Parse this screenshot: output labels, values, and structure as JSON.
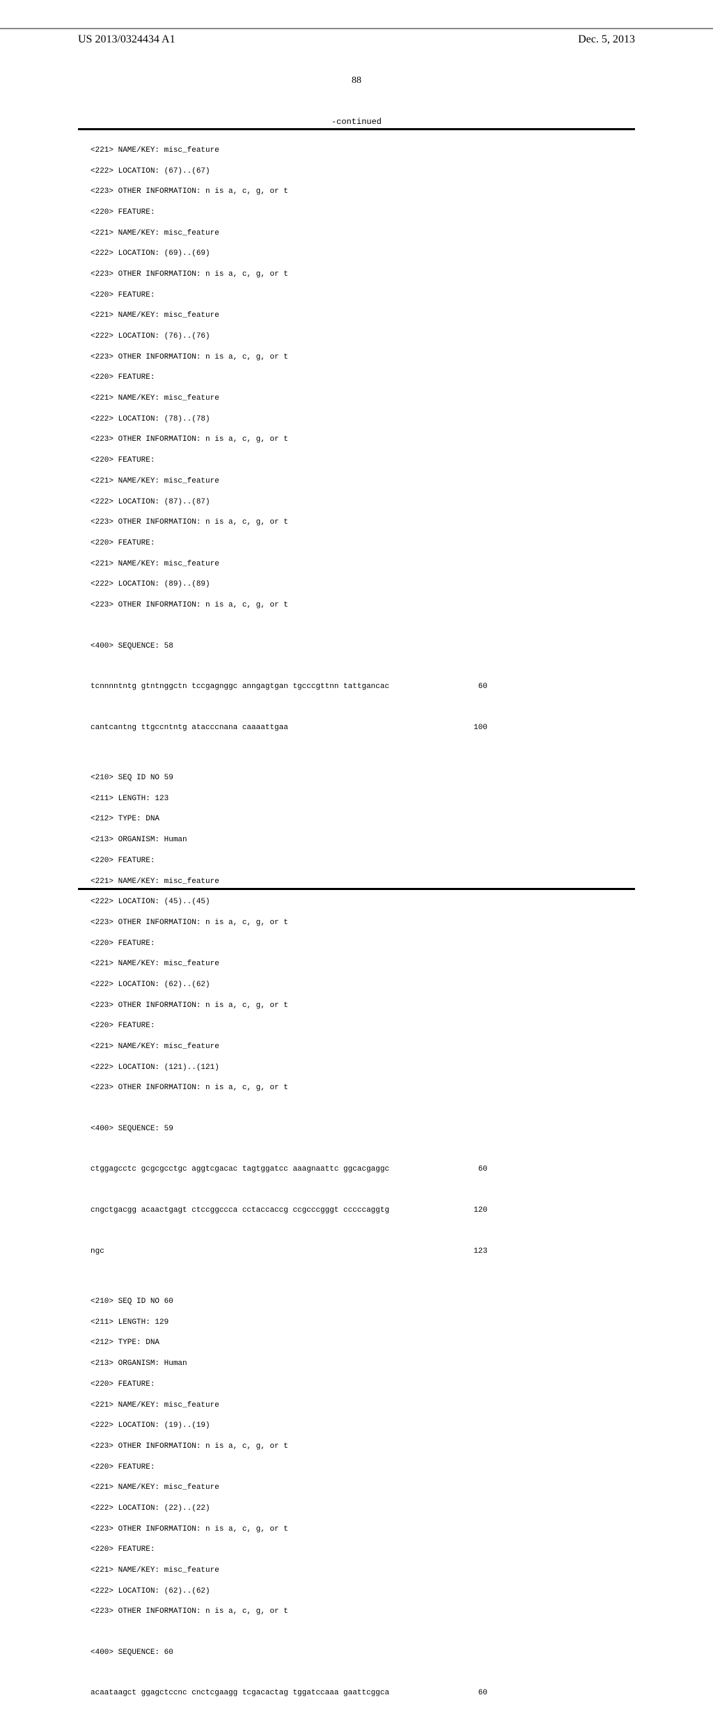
{
  "header": {
    "publication_number": "US 2013/0324434 A1",
    "publication_date": "Dec. 5, 2013"
  },
  "page_number": "88",
  "continued_label": "-continued",
  "block58": {
    "lines": [
      "<221> NAME/KEY: misc_feature",
      "<222> LOCATION: (67)..(67)",
      "<223> OTHER INFORMATION: n is a, c, g, or t",
      "<220> FEATURE:",
      "<221> NAME/KEY: misc_feature",
      "<222> LOCATION: (69)..(69)",
      "<223> OTHER INFORMATION: n is a, c, g, or t",
      "<220> FEATURE:",
      "<221> NAME/KEY: misc_feature",
      "<222> LOCATION: (76)..(76)",
      "<223> OTHER INFORMATION: n is a, c, g, or t",
      "<220> FEATURE:",
      "<221> NAME/KEY: misc_feature",
      "<222> LOCATION: (78)..(78)",
      "<223> OTHER INFORMATION: n is a, c, g, or t",
      "<220> FEATURE:",
      "<221> NAME/KEY: misc_feature",
      "<222> LOCATION: (87)..(87)",
      "<223> OTHER INFORMATION: n is a, c, g, or t",
      "<220> FEATURE:",
      "<221> NAME/KEY: misc_feature",
      "<222> LOCATION: (89)..(89)",
      "<223> OTHER INFORMATION: n is a, c, g, or t"
    ],
    "seq_label": "<400> SEQUENCE: 58",
    "seq1": {
      "text": "tcnnnntntg gtntnggctn tccgagnggc anngagtgan tgcccgttnn tattgancac",
      "num": "60"
    },
    "seq2": {
      "text": "cantcantng ttgccntntg atacccnana caaaattgaa",
      "num": "100"
    }
  },
  "block59": {
    "lines": [
      "<210> SEQ ID NO 59",
      "<211> LENGTH: 123",
      "<212> TYPE: DNA",
      "<213> ORGANISM: Human",
      "<220> FEATURE:",
      "<221> NAME/KEY: misc_feature",
      "<222> LOCATION: (45)..(45)",
      "<223> OTHER INFORMATION: n is a, c, g, or t",
      "<220> FEATURE:",
      "<221> NAME/KEY: misc_feature",
      "<222> LOCATION: (62)..(62)",
      "<223> OTHER INFORMATION: n is a, c, g, or t",
      "<220> FEATURE:",
      "<221> NAME/KEY: misc_feature",
      "<222> LOCATION: (121)..(121)",
      "<223> OTHER INFORMATION: n is a, c, g, or t"
    ],
    "seq_label": "<400> SEQUENCE: 59",
    "seq1": {
      "text": "ctggagcctc gcgcgcctgc aggtcgacac tagtggatcc aaagnaattc ggcacgaggc",
      "num": "60"
    },
    "seq2": {
      "text": "cngctgacgg acaactgagt ctccggccca cctaccaccg ccgcccgggt cccccaggtg",
      "num": "120"
    },
    "seq3": {
      "text": "ngc",
      "num": "123"
    }
  },
  "block60": {
    "lines": [
      "<210> SEQ ID NO 60",
      "<211> LENGTH: 129",
      "<212> TYPE: DNA",
      "<213> ORGANISM: Human",
      "<220> FEATURE:",
      "<221> NAME/KEY: misc_feature",
      "<222> LOCATION: (19)..(19)",
      "<223> OTHER INFORMATION: n is a, c, g, or t",
      "<220> FEATURE:",
      "<221> NAME/KEY: misc_feature",
      "<222> LOCATION: (22)..(22)",
      "<223> OTHER INFORMATION: n is a, c, g, or t",
      "<220> FEATURE:",
      "<221> NAME/KEY: misc_feature",
      "<222> LOCATION: (62)..(62)",
      "<223> OTHER INFORMATION: n is a, c, g, or t"
    ],
    "seq_label": "<400> SEQUENCE: 60",
    "seq1": {
      "text": "acaataagct ggagctccnc cnctcgaagg tcgacactag tggatccaaa gaattcggca",
      "num": "60"
    }
  }
}
